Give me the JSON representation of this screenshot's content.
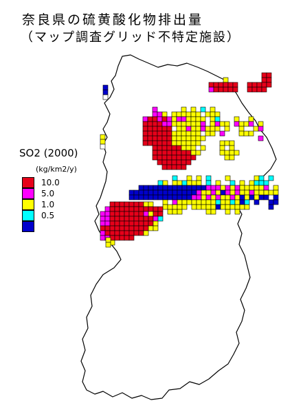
{
  "title_line1": "奈良県の硫黄酸化物排出量",
  "title_line2": "（マップ調査グリッド不特定施設）",
  "legend": {
    "title": "SO2 (2000)",
    "unit": "(kg/km2/y)",
    "items": [
      {
        "label": "10.0",
        "color": "#e6001a"
      },
      {
        "label": "5.0",
        "color": "#ff00ff"
      },
      {
        "label": "1.0",
        "color": "#ffff00"
      },
      {
        "label": "0.5",
        "color": "#00ffff"
      },
      {
        "label": "",
        "color": "#0000cc"
      }
    ]
  },
  "grid_legend_class_order": [
    "red",
    "magenta",
    "yellow",
    "cyan",
    "blue"
  ]
}
